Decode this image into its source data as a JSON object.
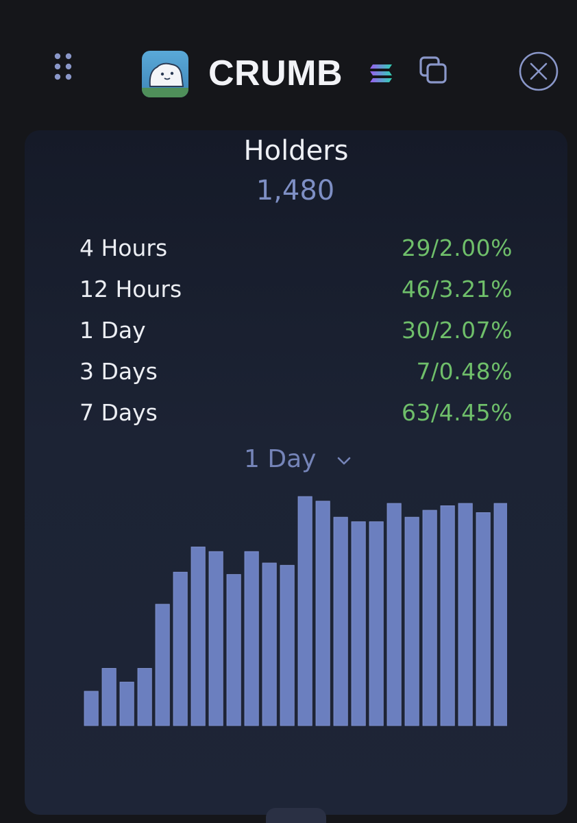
{
  "header": {
    "token_name": "CRUMB",
    "icons": {
      "drag": "drag-handle-icon",
      "logo": "token-logo",
      "chain": "solana-chain-icon",
      "copy": "copy-icon",
      "close": "close-icon"
    }
  },
  "holders": {
    "title": "Holders",
    "count": "1,480"
  },
  "stats": [
    {
      "label": "4 Hours",
      "value": "29/2.00%"
    },
    {
      "label": "12 Hours",
      "value": "46/3.21%"
    },
    {
      "label": "1 Day",
      "value": "30/2.07%"
    },
    {
      "label": "3 Days",
      "value": "7/0.48%"
    },
    {
      "label": "7 Days",
      "value": "63/4.45%"
    }
  ],
  "period_selector": {
    "selected": "1 Day"
  },
  "colors": {
    "bar": "#6b7fbf",
    "bar_edge": "#8597d4",
    "positive": "#6fbf6a",
    "accent": "#7e8fc4"
  },
  "chart_data": {
    "type": "bar",
    "values": [
      15,
      25,
      19,
      25,
      53,
      67,
      78,
      76,
      66,
      76,
      71,
      70,
      100,
      98,
      91,
      89,
      89,
      97,
      91,
      94,
      96,
      97,
      93,
      97
    ],
    "ylim": [
      0,
      100
    ],
    "grid": false,
    "legend": "none"
  }
}
